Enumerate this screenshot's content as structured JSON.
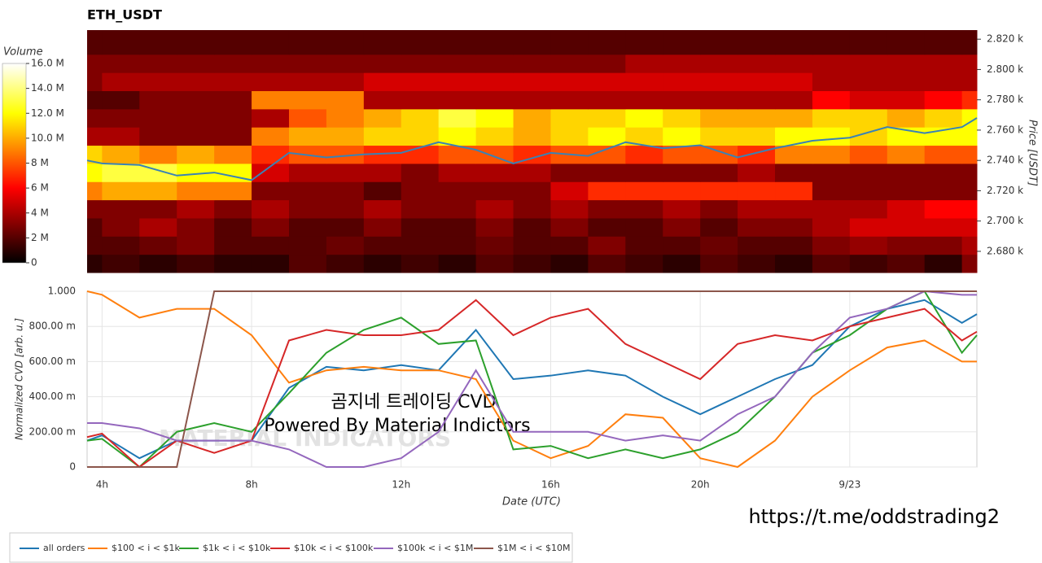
{
  "chart_data": [
    {
      "type": "heatmap",
      "title": "ETH_USDT",
      "colorbar_label": "Volume",
      "y_label": "Price [USDT]",
      "colormap": "hot",
      "xlim": [
        3.6,
        27.4
      ],
      "ylim": [
        2666,
        2826
      ],
      "zlim": [
        0,
        16
      ],
      "yticks": [
        {
          "value": 2680,
          "label": "2.680 k"
        },
        {
          "value": 2700,
          "label": "2.700 k"
        },
        {
          "value": 2720,
          "label": "2.720 k"
        },
        {
          "value": 2740,
          "label": "2.740 k"
        },
        {
          "value": 2760,
          "label": "2.760 k"
        },
        {
          "value": 2780,
          "label": "2.780 k"
        },
        {
          "value": 2800,
          "label": "2.800 k"
        },
        {
          "value": 2820,
          "label": "2.820 k"
        }
      ],
      "zticks": [
        0,
        {
          "value": 2,
          "label": "2 M"
        },
        {
          "value": 4,
          "label": "4 M"
        },
        {
          "value": 6,
          "label": "6 M"
        },
        {
          "value": 8,
          "label": "8 M"
        },
        {
          "value": 10,
          "label": "10.0 M"
        },
        {
          "value": 12,
          "label": "12.0 M"
        },
        {
          "value": 14,
          "label": "14.0 M"
        },
        {
          "value": 16,
          "label": "16.0 M"
        }
      ],
      "x_bins": [
        3.6,
        4,
        5,
        6,
        7,
        8,
        9,
        10,
        11,
        12,
        13,
        14,
        15,
        16,
        17,
        18,
        19,
        20,
        21,
        22,
        23,
        24,
        25,
        26,
        27,
        27.4
      ],
      "y_bins": [
        2666,
        2678,
        2690,
        2702,
        2714,
        2726,
        2738,
        2750,
        2762,
        2774,
        2786,
        2798,
        2810,
        2826
      ],
      "z": [
        [
          1,
          1.5,
          1,
          1.5,
          1,
          1,
          2,
          1.5,
          1,
          1.5,
          1,
          2,
          1.5,
          1,
          2,
          1.5,
          1,
          2,
          1.5,
          1,
          2,
          1.5,
          2,
          1,
          3
        ],
        [
          2,
          2,
          2.5,
          3,
          2,
          2,
          2,
          2.5,
          2,
          2,
          2,
          2.5,
          2,
          2,
          3,
          2,
          2,
          2.5,
          2,
          2,
          3,
          3.5,
          3,
          3,
          4
        ],
        [
          2,
          3,
          4,
          3,
          2,
          3,
          2,
          2,
          3,
          2,
          2,
          3,
          2,
          3,
          2,
          2,
          3,
          2,
          3,
          3,
          4,
          5,
          5,
          5,
          5
        ],
        [
          3,
          3,
          3,
          4,
          3,
          4,
          3,
          3,
          4,
          3,
          3,
          4,
          3,
          4,
          3,
          3,
          4,
          3,
          4,
          4,
          4,
          4,
          5,
          6,
          6
        ],
        [
          9,
          10,
          10,
          9,
          9,
          3,
          3,
          3,
          2,
          3,
          3,
          3,
          3,
          5,
          7,
          7,
          7,
          7,
          7,
          7,
          3,
          3,
          3,
          3,
          3
        ],
        [
          12,
          13,
          13,
          12,
          12,
          5,
          4,
          4,
          4,
          3,
          4,
          4,
          4,
          3,
          3,
          3,
          3,
          3,
          4,
          3,
          3,
          3,
          3,
          3,
          3
        ],
        [
          11,
          10,
          9,
          10,
          9,
          7,
          8,
          8,
          7,
          7,
          8,
          8,
          7,
          8,
          8,
          7,
          8,
          8,
          7,
          9,
          9,
          8,
          9,
          8,
          8
        ],
        [
          4,
          4,
          3,
          3,
          3,
          9,
          10,
          10,
          11,
          11,
          12,
          11,
          10,
          11,
          12,
          11,
          12,
          11,
          11,
          12,
          12,
          11,
          12,
          12,
          12
        ],
        [
          3,
          3,
          3,
          3,
          3,
          4,
          8,
          9,
          10,
          11,
          13,
          12,
          10,
          11,
          11,
          12,
          11,
          10,
          10,
          10,
          11,
          11,
          10,
          11,
          12
        ],
        [
          2,
          2,
          3,
          3,
          3,
          9,
          9,
          9,
          4,
          4,
          4,
          4,
          4,
          4,
          4,
          4,
          4,
          4,
          4,
          4,
          6,
          5,
          5,
          6,
          7
        ],
        [
          3,
          4,
          4,
          4,
          4,
          4,
          4,
          4,
          5,
          5,
          5,
          5,
          5,
          5,
          5,
          5,
          5,
          5,
          5,
          5,
          4,
          4,
          4,
          4,
          4
        ],
        [
          3,
          3,
          3,
          3,
          3,
          3,
          3,
          3,
          3,
          3,
          3,
          3,
          3,
          3,
          3,
          4,
          4,
          4,
          4,
          4,
          4,
          4,
          4,
          4,
          4
        ],
        [
          2,
          2,
          2,
          2,
          2,
          2,
          2,
          2,
          2,
          2,
          2,
          2,
          2,
          2,
          2,
          2,
          2,
          2,
          2,
          2,
          2,
          2,
          2,
          2,
          2
        ]
      ],
      "price_line": {
        "color": "#3a82b5",
        "x": [
          3.6,
          4,
          5,
          6,
          7,
          8,
          9,
          10,
          11,
          12,
          13,
          14,
          15,
          16,
          17,
          18,
          19,
          20,
          21,
          22,
          23,
          24,
          25,
          26,
          27,
          27.4
        ],
        "values": [
          2740,
          2738,
          2737,
          2730,
          2732,
          2727,
          2745,
          2742,
          2744,
          2745,
          2752,
          2747,
          2738,
          2745,
          2743,
          2752,
          2748,
          2750,
          2742,
          2748,
          2753,
          2755,
          2762,
          2758,
          2762,
          2768
        ]
      }
    },
    {
      "type": "line",
      "x_label": "Date (UTC)",
      "y_label": "Normalized CVD [arb. u.]",
      "grid": true,
      "xlim": [
        3.6,
        27.4
      ],
      "ylim": [
        0,
        1
      ],
      "xticks": [
        {
          "value": 4,
          "label": "4h"
        },
        {
          "value": 8,
          "label": "8h"
        },
        {
          "value": 12,
          "label": "12h"
        },
        {
          "value": 16,
          "label": "16h"
        },
        {
          "value": 20,
          "label": "20h"
        },
        {
          "value": 24,
          "label": "9/23"
        }
      ],
      "yticks": [
        0,
        {
          "value": 0.2,
          "label": "200.00 m"
        },
        {
          "value": 0.4,
          "label": "400.00 m"
        },
        {
          "value": 0.6,
          "label": "600.00 m"
        },
        {
          "value": 0.8,
          "label": "800.00 m"
        },
        {
          "value": 1,
          "label": "1.000"
        }
      ],
      "x": [
        3.6,
        4,
        5,
        6,
        7,
        8,
        9,
        10,
        11,
        12,
        13,
        14,
        15,
        16,
        17,
        18,
        19,
        20,
        21,
        22,
        23,
        24,
        25,
        26,
        27,
        27.4
      ],
      "series": [
        {
          "name": "all orders",
          "color": "#1f77b4",
          "values": [
            0.15,
            0.18,
            0.05,
            0.15,
            0.15,
            0.15,
            0.45,
            0.57,
            0.55,
            0.58,
            0.55,
            0.78,
            0.5,
            0.52,
            0.55,
            0.52,
            0.4,
            0.3,
            0.4,
            0.5,
            0.58,
            0.8,
            0.9,
            0.95,
            0.82,
            0.87
          ]
        },
        {
          "name": "$100 < i < $1k",
          "color": "#ff7f0e",
          "values": [
            1,
            0.98,
            0.85,
            0.9,
            0.9,
            0.75,
            0.48,
            0.55,
            0.57,
            0.55,
            0.55,
            0.5,
            0.15,
            0.05,
            0.12,
            0.3,
            0.28,
            0.05,
            0,
            0.15,
            0.4,
            0.55,
            0.68,
            0.72,
            0.6,
            0.6
          ]
        },
        {
          "name": "$1k < i < $10k",
          "color": "#2ca02c",
          "values": [
            0.15,
            0.16,
            0,
            0.2,
            0.25,
            0.2,
            0.42,
            0.65,
            0.78,
            0.85,
            0.7,
            0.72,
            0.1,
            0.12,
            0.05,
            0.1,
            0.05,
            0.1,
            0.2,
            0.4,
            0.65,
            0.75,
            0.9,
            1,
            0.65,
            0.75
          ]
        },
        {
          "name": "$10k < i < $100k",
          "color": "#d62728",
          "values": [
            0.17,
            0.19,
            0,
            0.15,
            0.08,
            0.15,
            0.72,
            0.78,
            0.75,
            0.75,
            0.78,
            0.95,
            0.75,
            0.85,
            0.9,
            0.7,
            0.6,
            0.5,
            0.7,
            0.75,
            0.72,
            0.8,
            0.85,
            0.9,
            0.72,
            0.77
          ]
        },
        {
          "name": "$100k < i < $1M",
          "color": "#9467bd",
          "values": [
            0.25,
            0.25,
            0.22,
            0.15,
            0.15,
            0.15,
            0.1,
            0,
            0,
            0.05,
            0.2,
            0.55,
            0.2,
            0.2,
            0.2,
            0.15,
            0.18,
            0.15,
            0.3,
            0.4,
            0.65,
            0.85,
            0.9,
            1,
            0.98,
            0.98
          ]
        },
        {
          "name": "$1M < i < $10M",
          "color": "#8c564b",
          "values": [
            0,
            0,
            0,
            0,
            1,
            1,
            1,
            1,
            1,
            1,
            1,
            1,
            1,
            1,
            1,
            1,
            1,
            1,
            1,
            1,
            1,
            1,
            1,
            1,
            1,
            1
          ]
        }
      ]
    }
  ],
  "annotations": {
    "watermark_line1": "곰지네 트레이딩 CVD",
    "watermark_line2": "Powered By Material Indictors",
    "logo": "MATERIAL INDICATORS",
    "url": "https://t.me/oddstrading2"
  }
}
